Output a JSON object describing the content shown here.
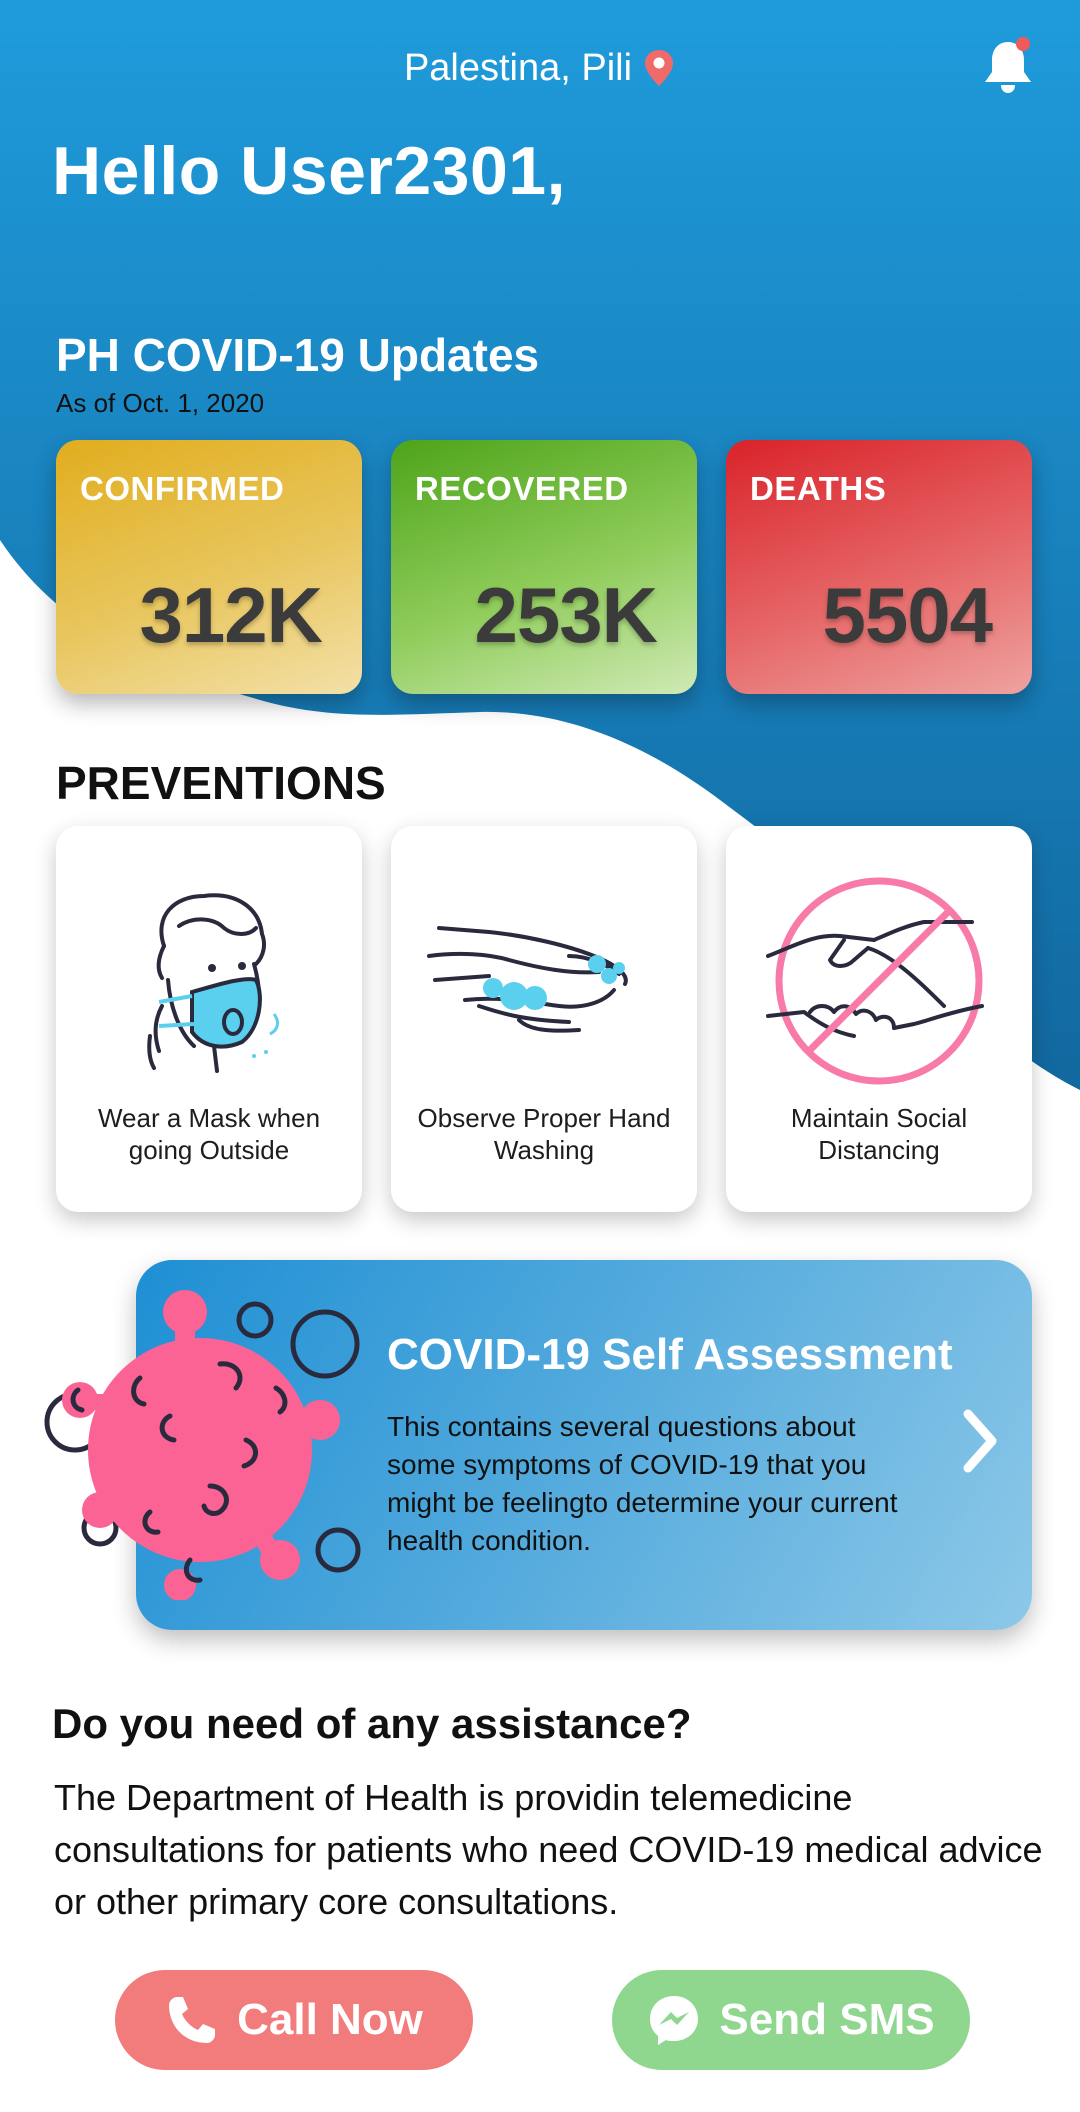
{
  "colors": {
    "header_blue": "#1c93d6",
    "confirmed": "#e1ad1d",
    "recovered": "#4da41a",
    "deaths": "#d9232a",
    "accent_pink": "#fb6394",
    "accent_cyan": "#5ad0ee",
    "call_button": "#f27c7c",
    "sms_button": "#8fd68f"
  },
  "header": {
    "location": "Palestina, Pili",
    "location_icon": "map-pin-icon",
    "notification_icon": "bell-icon",
    "greeting": "Hello User2301,"
  },
  "updates": {
    "title": "PH COVID-19 Updates",
    "date": "As of Oct. 1, 2020",
    "stats": [
      {
        "label": "CONFIRMED",
        "value": "312K"
      },
      {
        "label": "RECOVERED",
        "value": "253K"
      },
      {
        "label": "DEATHS",
        "value": "5504"
      }
    ]
  },
  "preventions": {
    "title": "PREVENTIONS",
    "items": [
      {
        "label": "Wear a Mask when going Outside",
        "icon": "face-mask-icon"
      },
      {
        "label": "Observe Proper Hand Washing",
        "icon": "hand-washing-icon"
      },
      {
        "label": "Maintain Social Distancing",
        "icon": "no-handshake-icon"
      }
    ]
  },
  "assessment": {
    "title": "COVID-19 Self Assessment",
    "description": "This contains several questions about some symptoms of COVID-19 that you might be feelingto determine your current health condition.",
    "icon": "virus-icon",
    "action_icon": "chevron-right-icon"
  },
  "assistance": {
    "title": "Do you need of any assistance?",
    "body": "The Department of Health is providin telemedicine consultations for patients who need COVID-19 medical advice or other primary core consultations.",
    "call_label": "Call Now",
    "call_icon": "phone-icon",
    "sms_label": "Send SMS",
    "sms_icon": "messenger-icon"
  }
}
